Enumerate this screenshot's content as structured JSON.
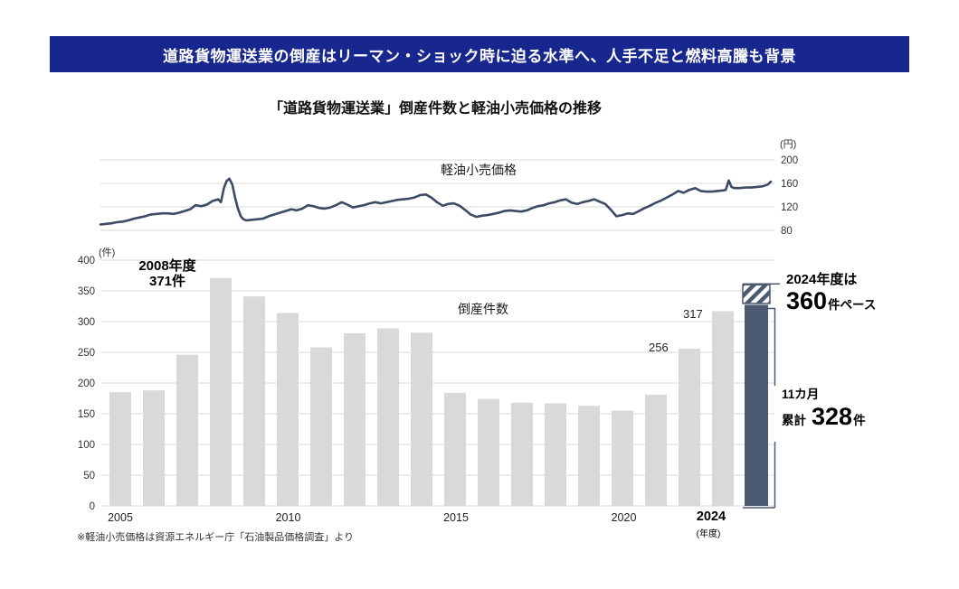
{
  "banner": {
    "title": "道路貨物運送業の倒産はリーマン・ショック時に迫る水準へ、人手不足と燃料高騰も背景",
    "bg_color": "#17278e"
  },
  "subtitle": "「道路貨物運送業」倒産件数と軽油小売価格の推移",
  "footnote": "※軽油小売価格は資源エネルギー庁「石油製品価格調査」より",
  "colors": {
    "banner_bg": "#17278e",
    "price_line": "#3d4a63",
    "bar_gray": "#d9d9d9",
    "bar_navy": "#4b5971",
    "grid": "#d9d9d9"
  },
  "price_chart": {
    "label": "軽油小売価格",
    "unit": "(円)",
    "y_ticks": [
      200,
      160,
      120,
      80
    ]
  },
  "bar_chart": {
    "label": "倒産件数",
    "unit": "(件)",
    "y_ticks": [
      400,
      350,
      300,
      250,
      200,
      150,
      100,
      50,
      0
    ],
    "x_ticks": [
      "2005",
      "2010",
      "2015",
      "2020",
      "2024"
    ],
    "x_axis_note": "(年度)",
    "annotations": {
      "peak_line1": "2008年度",
      "peak_line2": "371件",
      "val_2023": "317",
      "val_2022": "256",
      "pace_line1": "2024年度は",
      "pace_value": "360",
      "pace_suffix": "件ペース",
      "cum_line1": "11カ月",
      "cum_prefix": "累計",
      "cum_value": "328",
      "cum_suffix": "件"
    }
  },
  "chart_data": [
    {
      "type": "line",
      "title": "軽油小売価格",
      "ylabel": "円",
      "ylim": [
        70,
        212
      ],
      "y_ticks": [
        80,
        120,
        160,
        200
      ],
      "x_range": [
        2005,
        2025
      ],
      "grid": true,
      "series": [
        {
          "name": "軽油小売価格",
          "points": [
            [
              2005.0,
              90
            ],
            [
              2005.17,
              91
            ],
            [
              2005.33,
              92
            ],
            [
              2005.5,
              94
            ],
            [
              2005.67,
              95
            ],
            [
              2005.83,
              97
            ],
            [
              2006.0,
              100
            ],
            [
              2006.17,
              102
            ],
            [
              2006.33,
              104
            ],
            [
              2006.5,
              107
            ],
            [
              2006.67,
              108
            ],
            [
              2006.83,
              109
            ],
            [
              2007.0,
              109
            ],
            [
              2007.17,
              108
            ],
            [
              2007.33,
              110
            ],
            [
              2007.5,
              113
            ],
            [
              2007.67,
              116
            ],
            [
              2007.83,
              123
            ],
            [
              2008.0,
              121
            ],
            [
              2008.17,
              124
            ],
            [
              2008.33,
              130
            ],
            [
              2008.5,
              133
            ],
            [
              2008.58,
              128
            ],
            [
              2008.67,
              152
            ],
            [
              2008.75,
              164
            ],
            [
              2008.83,
              168
            ],
            [
              2008.92,
              158
            ],
            [
              2009.0,
              136
            ],
            [
              2009.08,
              118
            ],
            [
              2009.17,
              104
            ],
            [
              2009.25,
              99
            ],
            [
              2009.33,
              97
            ],
            [
              2009.5,
              98
            ],
            [
              2009.67,
              99
            ],
            [
              2009.83,
              100
            ],
            [
              2010.0,
              104
            ],
            [
              2010.17,
              107
            ],
            [
              2010.33,
              110
            ],
            [
              2010.5,
              113
            ],
            [
              2010.67,
              116
            ],
            [
              2010.83,
              114
            ],
            [
              2011.0,
              117
            ],
            [
              2011.17,
              123
            ],
            [
              2011.33,
              121
            ],
            [
              2011.5,
              118
            ],
            [
              2011.67,
              117
            ],
            [
              2011.83,
              119
            ],
            [
              2012.0,
              123
            ],
            [
              2012.17,
              128
            ],
            [
              2012.33,
              124
            ],
            [
              2012.5,
              119
            ],
            [
              2012.67,
              121
            ],
            [
              2012.83,
              123
            ],
            [
              2013.0,
              126
            ],
            [
              2013.17,
              128
            ],
            [
              2013.33,
              126
            ],
            [
              2013.5,
              128
            ],
            [
              2013.67,
              130
            ],
            [
              2013.83,
              132
            ],
            [
              2014.0,
              133
            ],
            [
              2014.17,
              134
            ],
            [
              2014.33,
              136
            ],
            [
              2014.5,
              140
            ],
            [
              2014.67,
              141
            ],
            [
              2014.83,
              136
            ],
            [
              2015.0,
              128
            ],
            [
              2015.17,
              122
            ],
            [
              2015.33,
              125
            ],
            [
              2015.5,
              126
            ],
            [
              2015.67,
              122
            ],
            [
              2015.83,
              115
            ],
            [
              2016.0,
              107
            ],
            [
              2016.17,
              103
            ],
            [
              2016.33,
              105
            ],
            [
              2016.5,
              106
            ],
            [
              2016.67,
              108
            ],
            [
              2016.83,
              110
            ],
            [
              2017.0,
              113
            ],
            [
              2017.17,
              114
            ],
            [
              2017.33,
              113
            ],
            [
              2017.5,
              112
            ],
            [
              2017.67,
              114
            ],
            [
              2017.83,
              118
            ],
            [
              2018.0,
              121
            ],
            [
              2018.17,
              123
            ],
            [
              2018.33,
              126
            ],
            [
              2018.5,
              128
            ],
            [
              2018.67,
              131
            ],
            [
              2018.83,
              133
            ],
            [
              2019.0,
              127
            ],
            [
              2019.17,
              125
            ],
            [
              2019.33,
              128
            ],
            [
              2019.5,
              130
            ],
            [
              2019.67,
              133
            ],
            [
              2019.83,
              129
            ],
            [
              2020.0,
              125
            ],
            [
              2020.17,
              115
            ],
            [
              2020.33,
              104
            ],
            [
              2020.5,
              106
            ],
            [
              2020.67,
              109
            ],
            [
              2020.83,
              108
            ],
            [
              2021.0,
              113
            ],
            [
              2021.17,
              118
            ],
            [
              2021.33,
              122
            ],
            [
              2021.5,
              127
            ],
            [
              2021.67,
              131
            ],
            [
              2021.83,
              136
            ],
            [
              2022.0,
              141
            ],
            [
              2022.17,
              147
            ],
            [
              2022.33,
              144
            ],
            [
              2022.5,
              149
            ],
            [
              2022.67,
              152
            ],
            [
              2022.83,
              147
            ],
            [
              2023.0,
              146
            ],
            [
              2023.17,
              146
            ],
            [
              2023.33,
              147
            ],
            [
              2023.5,
              148
            ],
            [
              2023.58,
              149
            ],
            [
              2023.67,
              165
            ],
            [
              2023.75,
              154
            ],
            [
              2023.83,
              152
            ],
            [
              2024.0,
              152
            ],
            [
              2024.17,
              153
            ],
            [
              2024.33,
              153
            ],
            [
              2024.5,
              154
            ],
            [
              2024.67,
              155
            ],
            [
              2024.83,
              158
            ],
            [
              2024.92,
              163
            ]
          ]
        }
      ]
    },
    {
      "type": "bar",
      "title": "倒産件数",
      "ylabel": "件",
      "ylim": [
        0,
        400
      ],
      "y_ticks": [
        0,
        50,
        100,
        150,
        200,
        250,
        300,
        350,
        400
      ],
      "grid": true,
      "categories": [
        2005,
        2006,
        2007,
        2008,
        2009,
        2010,
        2011,
        2012,
        2013,
        2014,
        2015,
        2016,
        2017,
        2018,
        2019,
        2020,
        2021,
        2022,
        2023
      ],
      "values": [
        185,
        188,
        246,
        371,
        341,
        314,
        258,
        281,
        289,
        282,
        184,
        174,
        168,
        167,
        163,
        155,
        181,
        256,
        317
      ],
      "final_year": {
        "category": 2024,
        "cumulative_11_months": 328,
        "annual_pace": 360
      }
    }
  ]
}
